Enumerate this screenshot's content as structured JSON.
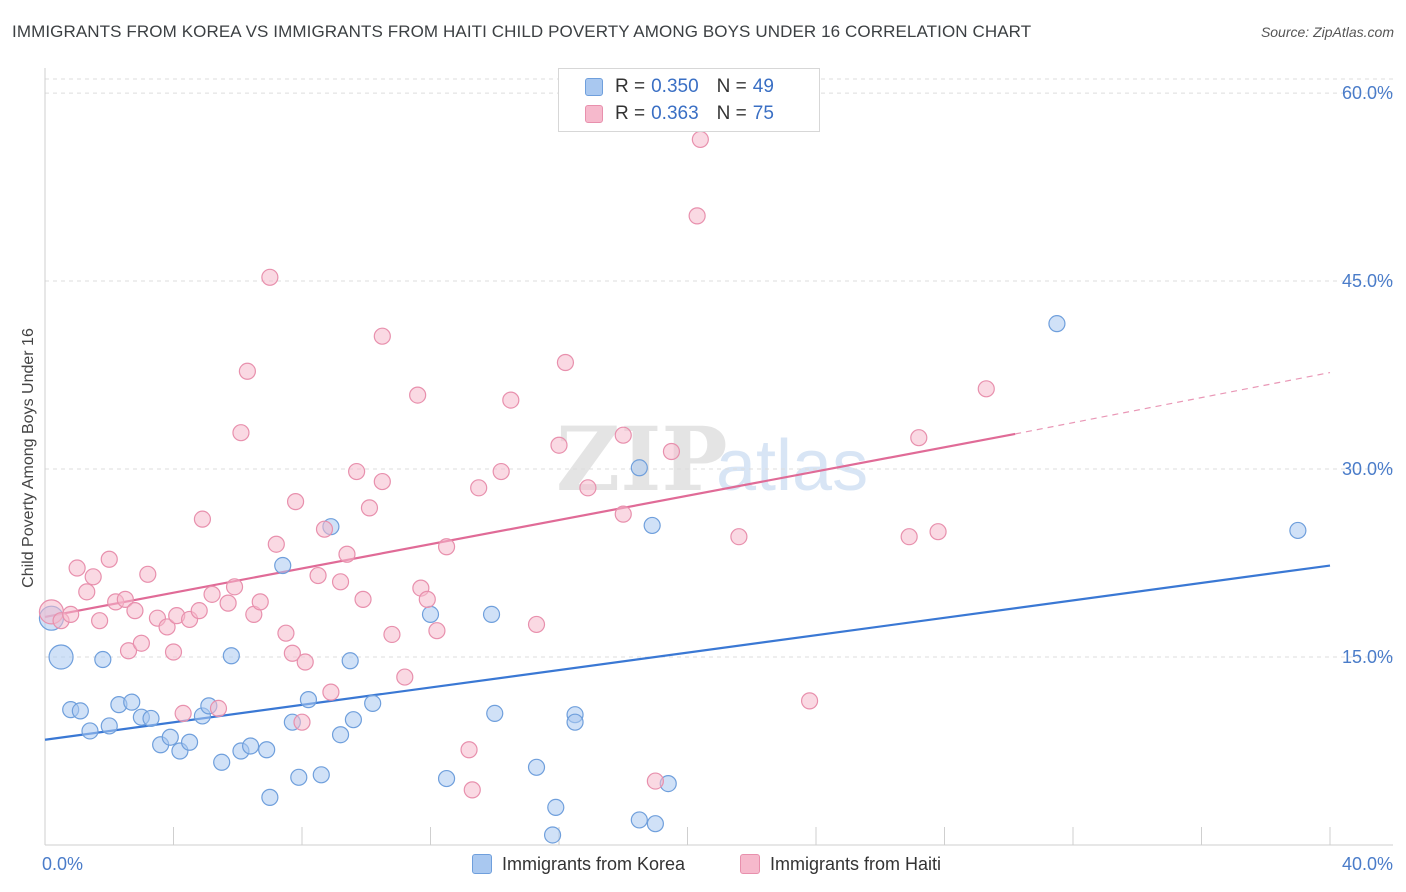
{
  "title": "IMMIGRANTS FROM KOREA VS IMMIGRANTS FROM HAITI CHILD POVERTY AMONG BOYS UNDER 16 CORRELATION CHART",
  "source": "Source: ZipAtlas.com",
  "watermark": {
    "zip": "ZIP",
    "atlas": "atlas"
  },
  "legend": {
    "korea": {
      "r_label": "R =",
      "r_value": "0.350",
      "n_label": "N =",
      "n_value": "49"
    },
    "haiti": {
      "r_label": "R =",
      "r_value": "0.363",
      "n_label": "N =",
      "n_value": "75"
    }
  },
  "bottom_legend": {
    "korea": "Immigrants from Korea",
    "haiti": "Immigrants from Haiti"
  },
  "colors": {
    "korea_fill": "#a9c8f0",
    "korea_stroke": "#6f9fdc",
    "korea_line": "#3a78d4",
    "haiti_fill": "#f6b9cc",
    "haiti_stroke": "#e890ad",
    "haiti_line": "#e06b97",
    "grid": "#dddddd",
    "axis_label": "#4a7cc9"
  },
  "chart_data": {
    "type": "scatter",
    "title": "IMMIGRANTS FROM KOREA VS IMMIGRANTS FROM HAITI CHILD POVERTY AMONG BOYS UNDER 16 CORRELATION CHART",
    "xlabel": "",
    "ylabel": "Child Poverty Among Boys Under 16",
    "xlim": [
      0,
      40
    ],
    "ylim": [
      0,
      62
    ],
    "x_tick_labels": [
      "0.0%",
      "40.0%"
    ],
    "y_ticks": [
      15,
      30,
      45,
      60
    ],
    "y_tick_labels": [
      "15.0%",
      "30.0%",
      "45.0%",
      "60.0%"
    ],
    "grid": true,
    "legend_position": "top-center",
    "series": [
      {
        "name": "Immigrants from Korea",
        "R": 0.35,
        "N": 49,
        "trend": {
          "x": [
            0,
            40
          ],
          "y": [
            8.4,
            22.3
          ]
        },
        "points": [
          {
            "x": 0.2,
            "y": 18.1,
            "big": true
          },
          {
            "x": 0.5,
            "y": 15.0,
            "big": true
          },
          {
            "x": 0.8,
            "y": 10.8
          },
          {
            "x": 1.1,
            "y": 10.7
          },
          {
            "x": 1.4,
            "y": 9.1
          },
          {
            "x": 1.8,
            "y": 14.8
          },
          {
            "x": 2.0,
            "y": 9.5
          },
          {
            "x": 2.3,
            "y": 11.2
          },
          {
            "x": 2.7,
            "y": 11.4
          },
          {
            "x": 3.0,
            "y": 10.2
          },
          {
            "x": 3.3,
            "y": 10.1
          },
          {
            "x": 3.6,
            "y": 8.0
          },
          {
            "x": 3.9,
            "y": 8.6
          },
          {
            "x": 4.2,
            "y": 7.5
          },
          {
            "x": 4.5,
            "y": 8.2
          },
          {
            "x": 4.9,
            "y": 10.3
          },
          {
            "x": 5.1,
            "y": 11.1
          },
          {
            "x": 5.5,
            "y": 6.6
          },
          {
            "x": 5.8,
            "y": 15.1
          },
          {
            "x": 6.1,
            "y": 7.5
          },
          {
            "x": 6.4,
            "y": 7.9
          },
          {
            "x": 6.9,
            "y": 7.6
          },
          {
            "x": 7.0,
            "y": 3.8
          },
          {
            "x": 7.4,
            "y": 22.3
          },
          {
            "x": 7.7,
            "y": 9.8
          },
          {
            "x": 7.9,
            "y": 5.4
          },
          {
            "x": 8.2,
            "y": 11.6
          },
          {
            "x": 8.6,
            "y": 5.6
          },
          {
            "x": 8.9,
            "y": 25.4
          },
          {
            "x": 9.2,
            "y": 8.8
          },
          {
            "x": 9.5,
            "y": 14.7
          },
          {
            "x": 9.6,
            "y": 10.0
          },
          {
            "x": 10.2,
            "y": 11.3
          },
          {
            "x": 12.0,
            "y": 18.4
          },
          {
            "x": 12.5,
            "y": 5.3
          },
          {
            "x": 13.9,
            "y": 18.4
          },
          {
            "x": 14.0,
            "y": 10.5
          },
          {
            "x": 15.3,
            "y": 6.2
          },
          {
            "x": 15.8,
            "y": 0.8
          },
          {
            "x": 15.9,
            "y": 3.0
          },
          {
            "x": 16.5,
            "y": 10.4
          },
          {
            "x": 16.5,
            "y": 9.8
          },
          {
            "x": 18.5,
            "y": 30.1
          },
          {
            "x": 18.5,
            "y": 2.0
          },
          {
            "x": 18.9,
            "y": 25.5
          },
          {
            "x": 19.0,
            "y": 1.7
          },
          {
            "x": 19.4,
            "y": 4.9
          },
          {
            "x": 31.5,
            "y": 41.6
          },
          {
            "x": 39.0,
            "y": 25.1
          }
        ]
      },
      {
        "name": "Immigrants from Haiti",
        "R": 0.363,
        "N": 75,
        "trend": {
          "x": [
            0,
            30.2
          ],
          "y": [
            18.2,
            32.8
          ]
        },
        "trend_dashed": {
          "x": [
            30.2,
            40
          ],
          "y": [
            32.8,
            37.7
          ]
        },
        "points": [
          {
            "x": 0.2,
            "y": 18.6,
            "big": true
          },
          {
            "x": 0.5,
            "y": 17.9
          },
          {
            "x": 0.8,
            "y": 18.4
          },
          {
            "x": 1.0,
            "y": 22.1
          },
          {
            "x": 1.3,
            "y": 20.2
          },
          {
            "x": 1.5,
            "y": 21.4
          },
          {
            "x": 1.7,
            "y": 17.9
          },
          {
            "x": 2.0,
            "y": 22.8
          },
          {
            "x": 2.2,
            "y": 19.4
          },
          {
            "x": 2.5,
            "y": 19.6
          },
          {
            "x": 2.6,
            "y": 15.5
          },
          {
            "x": 2.8,
            "y": 18.7
          },
          {
            "x": 3.0,
            "y": 16.1
          },
          {
            "x": 3.2,
            "y": 21.6
          },
          {
            "x": 3.5,
            "y": 18.1
          },
          {
            "x": 3.8,
            "y": 17.4
          },
          {
            "x": 4.0,
            "y": 15.4
          },
          {
            "x": 4.1,
            "y": 18.3
          },
          {
            "x": 4.3,
            "y": 10.5
          },
          {
            "x": 4.5,
            "y": 18.0
          },
          {
            "x": 4.8,
            "y": 18.7
          },
          {
            "x": 4.9,
            "y": 26.0
          },
          {
            "x": 5.2,
            "y": 20.0
          },
          {
            "x": 5.4,
            "y": 10.9
          },
          {
            "x": 5.7,
            "y": 19.3
          },
          {
            "x": 5.9,
            "y": 20.6
          },
          {
            "x": 6.1,
            "y": 32.9
          },
          {
            "x": 6.3,
            "y": 37.8
          },
          {
            "x": 6.5,
            "y": 18.4
          },
          {
            "x": 6.7,
            "y": 19.4
          },
          {
            "x": 7.0,
            "y": 45.3
          },
          {
            "x": 7.2,
            "y": 24.0
          },
          {
            "x": 7.5,
            "y": 16.9
          },
          {
            "x": 7.7,
            "y": 15.3
          },
          {
            "x": 7.8,
            "y": 27.4
          },
          {
            "x": 8.0,
            "y": 9.8
          },
          {
            "x": 8.1,
            "y": 14.6
          },
          {
            "x": 8.5,
            "y": 21.5
          },
          {
            "x": 8.7,
            "y": 25.2
          },
          {
            "x": 8.9,
            "y": 12.2
          },
          {
            "x": 9.2,
            "y": 21.0
          },
          {
            "x": 9.4,
            "y": 23.2
          },
          {
            "x": 9.7,
            "y": 29.8
          },
          {
            "x": 9.9,
            "y": 19.6
          },
          {
            "x": 10.1,
            "y": 26.9
          },
          {
            "x": 10.5,
            "y": 29.0
          },
          {
            "x": 10.5,
            "y": 40.6
          },
          {
            "x": 10.8,
            "y": 16.8
          },
          {
            "x": 11.2,
            "y": 13.4
          },
          {
            "x": 11.6,
            "y": 35.9
          },
          {
            "x": 11.7,
            "y": 20.5
          },
          {
            "x": 11.9,
            "y": 19.6
          },
          {
            "x": 12.2,
            "y": 17.1
          },
          {
            "x": 12.5,
            "y": 23.8
          },
          {
            "x": 13.2,
            "y": 7.6
          },
          {
            "x": 13.3,
            "y": 4.4
          },
          {
            "x": 13.5,
            "y": 28.5
          },
          {
            "x": 14.2,
            "y": 29.8
          },
          {
            "x": 14.5,
            "y": 35.5
          },
          {
            "x": 15.3,
            "y": 17.6
          },
          {
            "x": 16.2,
            "y": 38.5
          },
          {
            "x": 16.0,
            "y": 31.9
          },
          {
            "x": 16.9,
            "y": 28.5
          },
          {
            "x": 18.0,
            "y": 32.7
          },
          {
            "x": 19.0,
            "y": 5.1
          },
          {
            "x": 19.5,
            "y": 31.4
          },
          {
            "x": 20.3,
            "y": 50.2
          },
          {
            "x": 20.4,
            "y": 56.3
          },
          {
            "x": 21.6,
            "y": 24.6
          },
          {
            "x": 23.8,
            "y": 11.5
          },
          {
            "x": 26.9,
            "y": 24.6
          },
          {
            "x": 27.2,
            "y": 32.5
          },
          {
            "x": 27.8,
            "y": 25.0
          },
          {
            "x": 29.3,
            "y": 36.4
          },
          {
            "x": 18.0,
            "y": 26.4
          }
        ]
      }
    ]
  }
}
